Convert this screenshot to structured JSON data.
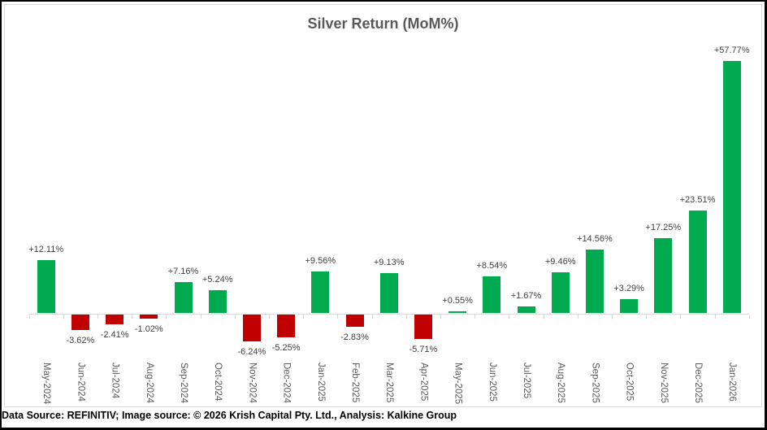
{
  "title": "Silver Return (MoM%)",
  "footer": "Data Source: REFINITIV; Image source: © 2026 Krish Capital Pty. Ltd., Analysis: Kalkine Group",
  "colors": {
    "positive_bar": "#00ab4f",
    "negative_bar": "#c00000",
    "title_text": "#595959",
    "data_label_text": "#404040",
    "axis_label_text": "#595959",
    "axis_line": "#d9d9d9",
    "outer_border": "#000000",
    "background": "#ffffff"
  },
  "chart_data": {
    "type": "bar",
    "title": "Silver Return (MoM%)",
    "xlabel": "",
    "ylabel": "",
    "ylim": [
      -10,
      60
    ],
    "grid": false,
    "legend": false,
    "categories": [
      "May-2024",
      "Jun-2024",
      "Jul-2024",
      "Aug-2024",
      "Sep-2024",
      "Oct-2024",
      "Nov-2024",
      "Dec-2024",
      "Jan-2025",
      "Feb-2025",
      "Mar-2025",
      "Apr-2025",
      "May-2025",
      "Jun-2025",
      "Jul-2025",
      "Aug-2025",
      "Sep-2025",
      "Oct-2025",
      "Nov-2025",
      "Dec-2025",
      "Jan-2026"
    ],
    "values": [
      12.11,
      -3.62,
      -2.41,
      -1.02,
      7.16,
      5.24,
      -6.24,
      -5.25,
      9.56,
      -2.83,
      9.13,
      -5.71,
      0.55,
      8.54,
      1.67,
      9.46,
      14.56,
      3.29,
      17.25,
      23.51,
      57.77
    ],
    "labels": [
      "+12.11%",
      "-3.62%",
      "-2.41%",
      "-1.02%",
      "+7.16%",
      "+5.24%",
      "-6.24%",
      "-5.25%",
      "+9.56%",
      "-2.83%",
      "+9.13%",
      "-5.71%",
      "+0.55%",
      "+8.54%",
      "+1.67%",
      "+9.46%",
      "+14.56%",
      "+3.29%",
      "+17.25%",
      "+23.51%",
      "+57.77%"
    ]
  }
}
